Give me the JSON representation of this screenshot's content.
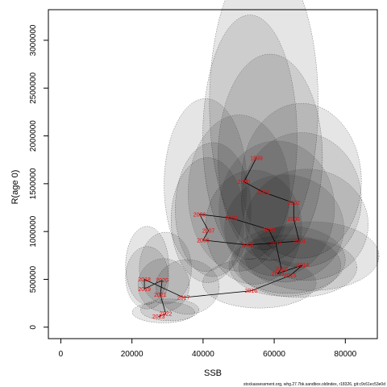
{
  "chart_data": {
    "type": "scatter",
    "xlabel": "SSB",
    "ylabel": "R(age 0)",
    "xlim": [
      -3500,
      89000
    ],
    "ylim": [
      -120000,
      3320000
    ],
    "x_ticks": [
      0,
      20000,
      40000,
      60000,
      80000
    ],
    "x_tick_labels": [
      "0",
      "20000",
      "40000",
      "60000",
      "80000"
    ],
    "y_ticks": [
      0,
      500000,
      1000000,
      1500000,
      2000000,
      2500000,
      3000000
    ],
    "y_tick_labels": [
      "0",
      "500000",
      "1000000",
      "1500000",
      "2000000",
      "2500000",
      "3000000"
    ],
    "grid": false,
    "colors": {
      "label": "#ff0000",
      "line": "#000000",
      "ellipse_fill": "#000000",
      "ellipse_stroke": "#666666"
    },
    "points": [
      {
        "year": "1999",
        "ssb": 55000,
        "rec": 1770000,
        "cv_ssb": 0.14,
        "cv_rec": 0.4
      },
      {
        "year": "2000",
        "ssb": 51500,
        "rec": 1520000,
        "cv_ssb": 0.13,
        "cv_rec": 0.39
      },
      {
        "year": "2001",
        "ssb": 57000,
        "rec": 1410000,
        "cv_ssb": 0.13,
        "cv_rec": 0.36
      },
      {
        "year": "2002",
        "ssb": 65500,
        "rec": 1300000,
        "cv_ssb": 0.13,
        "cv_rec": 0.3
      },
      {
        "year": "2003",
        "ssb": 65500,
        "rec": 1130000,
        "cv_ssb": 0.13,
        "cv_rec": 0.3
      },
      {
        "year": "2004",
        "ssb": 67000,
        "rec": 900000,
        "cv_ssb": 0.13,
        "cv_rec": 0.31
      },
      {
        "year": "2005",
        "ssb": 52500,
        "rec": 860000,
        "cv_ssb": 0.13,
        "cv_rec": 0.33
      },
      {
        "year": "2006",
        "ssb": 40000,
        "rec": 910000,
        "cv_ssb": 0.13,
        "cv_rec": 0.34
      },
      {
        "year": "2007",
        "ssb": 41500,
        "rec": 1010000,
        "cv_ssb": 0.13,
        "cv_rec": 0.33
      },
      {
        "year": "2008",
        "ssb": 39000,
        "rec": 1180000,
        "cv_ssb": 0.15,
        "cv_rec": 0.36
      },
      {
        "year": "2009",
        "ssb": 48000,
        "rec": 1140000,
        "cv_ssb": 0.15,
        "cv_rec": 0.34
      },
      {
        "year": "2010",
        "ssb": 58500,
        "rec": 1020000,
        "cv_ssb": 0.14,
        "cv_rec": 0.33
      },
      {
        "year": "2011",
        "ssb": 60500,
        "rec": 870000,
        "cv_ssb": 0.14,
        "cv_rec": 0.31
      },
      {
        "year": "2012",
        "ssb": 62000,
        "rec": 610000,
        "cv_ssb": 0.13,
        "cv_rec": 0.28
      },
      {
        "year": "2013",
        "ssb": 61000,
        "rec": 560000,
        "cv_ssb": 0.13,
        "cv_rec": 0.28
      },
      {
        "year": "2014",
        "ssb": 68000,
        "rec": 650000,
        "cv_ssb": 0.14,
        "cv_rec": 0.27
      },
      {
        "year": "2015",
        "ssb": 64500,
        "rec": 540000,
        "cv_ssb": 0.13,
        "cv_rec": 0.28
      },
      {
        "year": "2016",
        "ssb": 53500,
        "rec": 380000,
        "cv_ssb": 0.15,
        "cv_rec": 0.33
      },
      {
        "year": "2017",
        "ssb": 34500,
        "rec": 310000,
        "cv_ssb": 0.13,
        "cv_rec": 0.42
      },
      {
        "year": "2018",
        "ssb": 23500,
        "rec": 500000,
        "cv_ssb": 0.13,
        "cv_rec": 0.38
      },
      {
        "year": "2019",
        "ssb": 23500,
        "rec": 400000,
        "cv_ssb": 0.13,
        "cv_rec": 0.38
      },
      {
        "year": "2020",
        "ssb": 28500,
        "rec": 490000,
        "cv_ssb": 0.13,
        "cv_rec": 0.36
      },
      {
        "year": "2021",
        "ssb": 28000,
        "rec": 340000,
        "cv_ssb": 0.13,
        "cv_rec": 0.38
      },
      {
        "year": "2022",
        "ssb": 29500,
        "rec": 140000,
        "cv_ssb": 0.14,
        "cv_rec": 0.38
      },
      {
        "year": "2023",
        "ssb": 27500,
        "rec": 110000,
        "cv_ssb": 0.16,
        "cv_rec": 0.45
      }
    ]
  },
  "credit": "stockassessment.org, whg.27.7bk.sandbox.oldindex, r18326, git:c9c61ec53e0d"
}
